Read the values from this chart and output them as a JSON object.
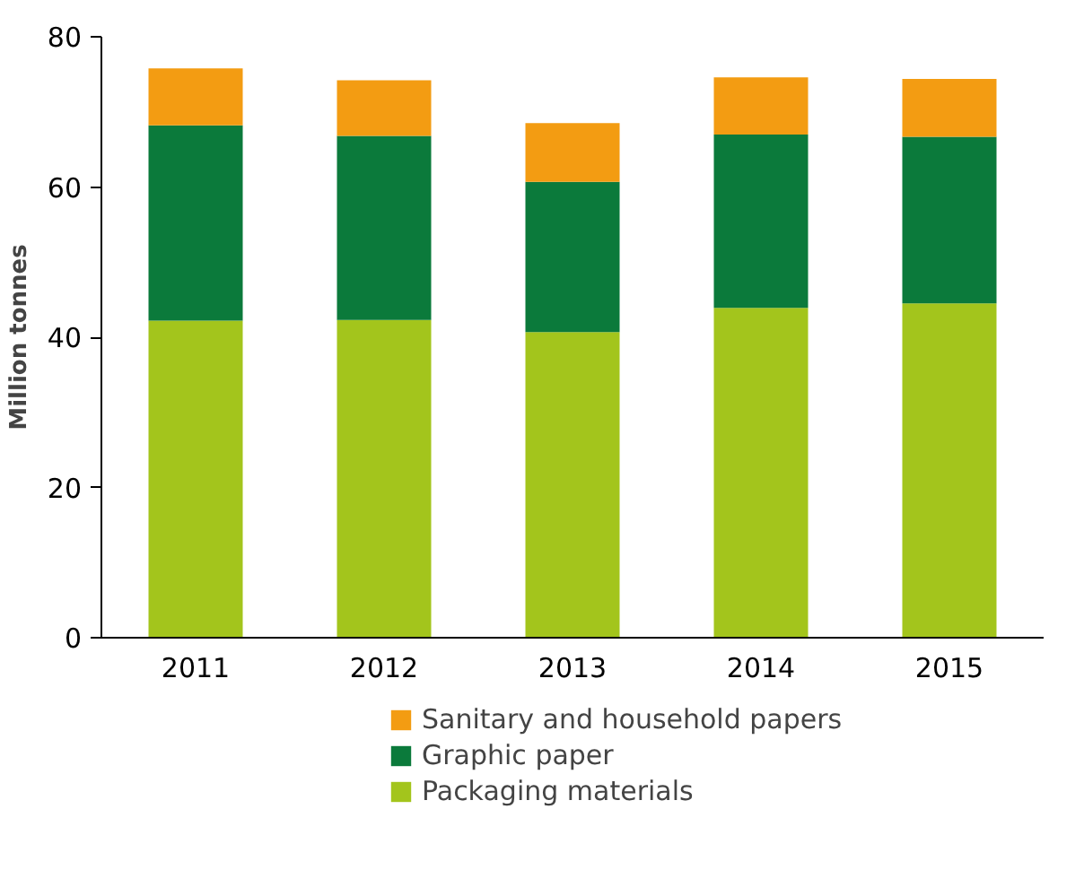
{
  "chart_data": {
    "type": "bar",
    "stacked": true,
    "ylabel": "Million tonnes",
    "categories": [
      "2011",
      "2012",
      "2013",
      "2014",
      "2015"
    ],
    "series": [
      {
        "name": "Packaging materials",
        "color": "#a3c51c",
        "values": [
          42.2,
          42.3,
          40.7,
          43.9,
          44.5
        ]
      },
      {
        "name": "Graphic paper",
        "color": "#0b7a3b",
        "values": [
          26.0,
          24.5,
          20.0,
          23.1,
          22.2
        ]
      },
      {
        "name": "Sanitary and household papers",
        "color": "#f39c12",
        "values": [
          7.6,
          7.4,
          7.8,
          7.6,
          7.7
        ]
      }
    ],
    "ylim": [
      0,
      80
    ],
    "yticks": [
      0,
      20,
      40,
      60,
      80
    ],
    "grid": false,
    "legend": "bottom"
  }
}
